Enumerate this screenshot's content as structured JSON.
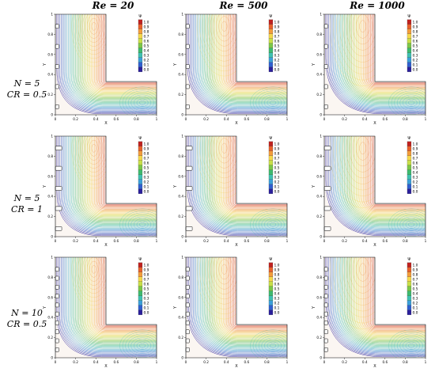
{
  "column_titles": [
    "Re = 20",
    "Re = 500",
    "Re = 1000"
  ],
  "row_labels": [
    {
      "line1": "N = 5",
      "line2": "CR = 0.5"
    },
    {
      "line1": "N = 5",
      "line2": "CR = 1"
    },
    {
      "line1": "N = 10",
      "line2": "CR = 0.5"
    }
  ],
  "panels": [
    {
      "row": 0,
      "col": 0,
      "fins": 5,
      "cr": 0.5,
      "re": 20
    },
    {
      "row": 0,
      "col": 1,
      "fins": 5,
      "cr": 0.5,
      "re": 500
    },
    {
      "row": 0,
      "col": 2,
      "fins": 5,
      "cr": 0.5,
      "re": 1000
    },
    {
      "row": 1,
      "col": 0,
      "fins": 5,
      "cr": 1,
      "re": 20
    },
    {
      "row": 1,
      "col": 1,
      "fins": 5,
      "cr": 1,
      "re": 500
    },
    {
      "row": 1,
      "col": 2,
      "fins": 5,
      "cr": 1,
      "re": 1000
    },
    {
      "row": 2,
      "col": 0,
      "fins": 10,
      "cr": 0.5,
      "re": 20
    },
    {
      "row": 2,
      "col": 1,
      "fins": 10,
      "cr": 0.5,
      "re": 500
    },
    {
      "row": 2,
      "col": 2,
      "fins": 10,
      "cr": 0.5,
      "re": 1000
    }
  ],
  "axes": {
    "xlabel": "X",
    "ylabel": "Y",
    "x_ticks": [
      "0",
      "0.2",
      "0.4",
      "0.6",
      "0.8",
      "1"
    ],
    "y_ticks": [
      "0",
      "0.2",
      "0.4",
      "0.6",
      "0.8",
      "1"
    ]
  },
  "legend": {
    "title": "Ψ",
    "levels": [
      "1.0",
      "0.9",
      "0.8",
      "0.7",
      "0.6",
      "0.5",
      "0.4",
      "0.3",
      "0.2",
      "0.1",
      "0.0"
    ],
    "colors": [
      "#c0211f",
      "#e8602a",
      "#f39c3a",
      "#f5d84a",
      "#c8df47",
      "#7cc847",
      "#3dbb6e",
      "#3ec1b1",
      "#3a9fd9",
      "#2f5fd0",
      "#2a1f9c"
    ]
  }
}
